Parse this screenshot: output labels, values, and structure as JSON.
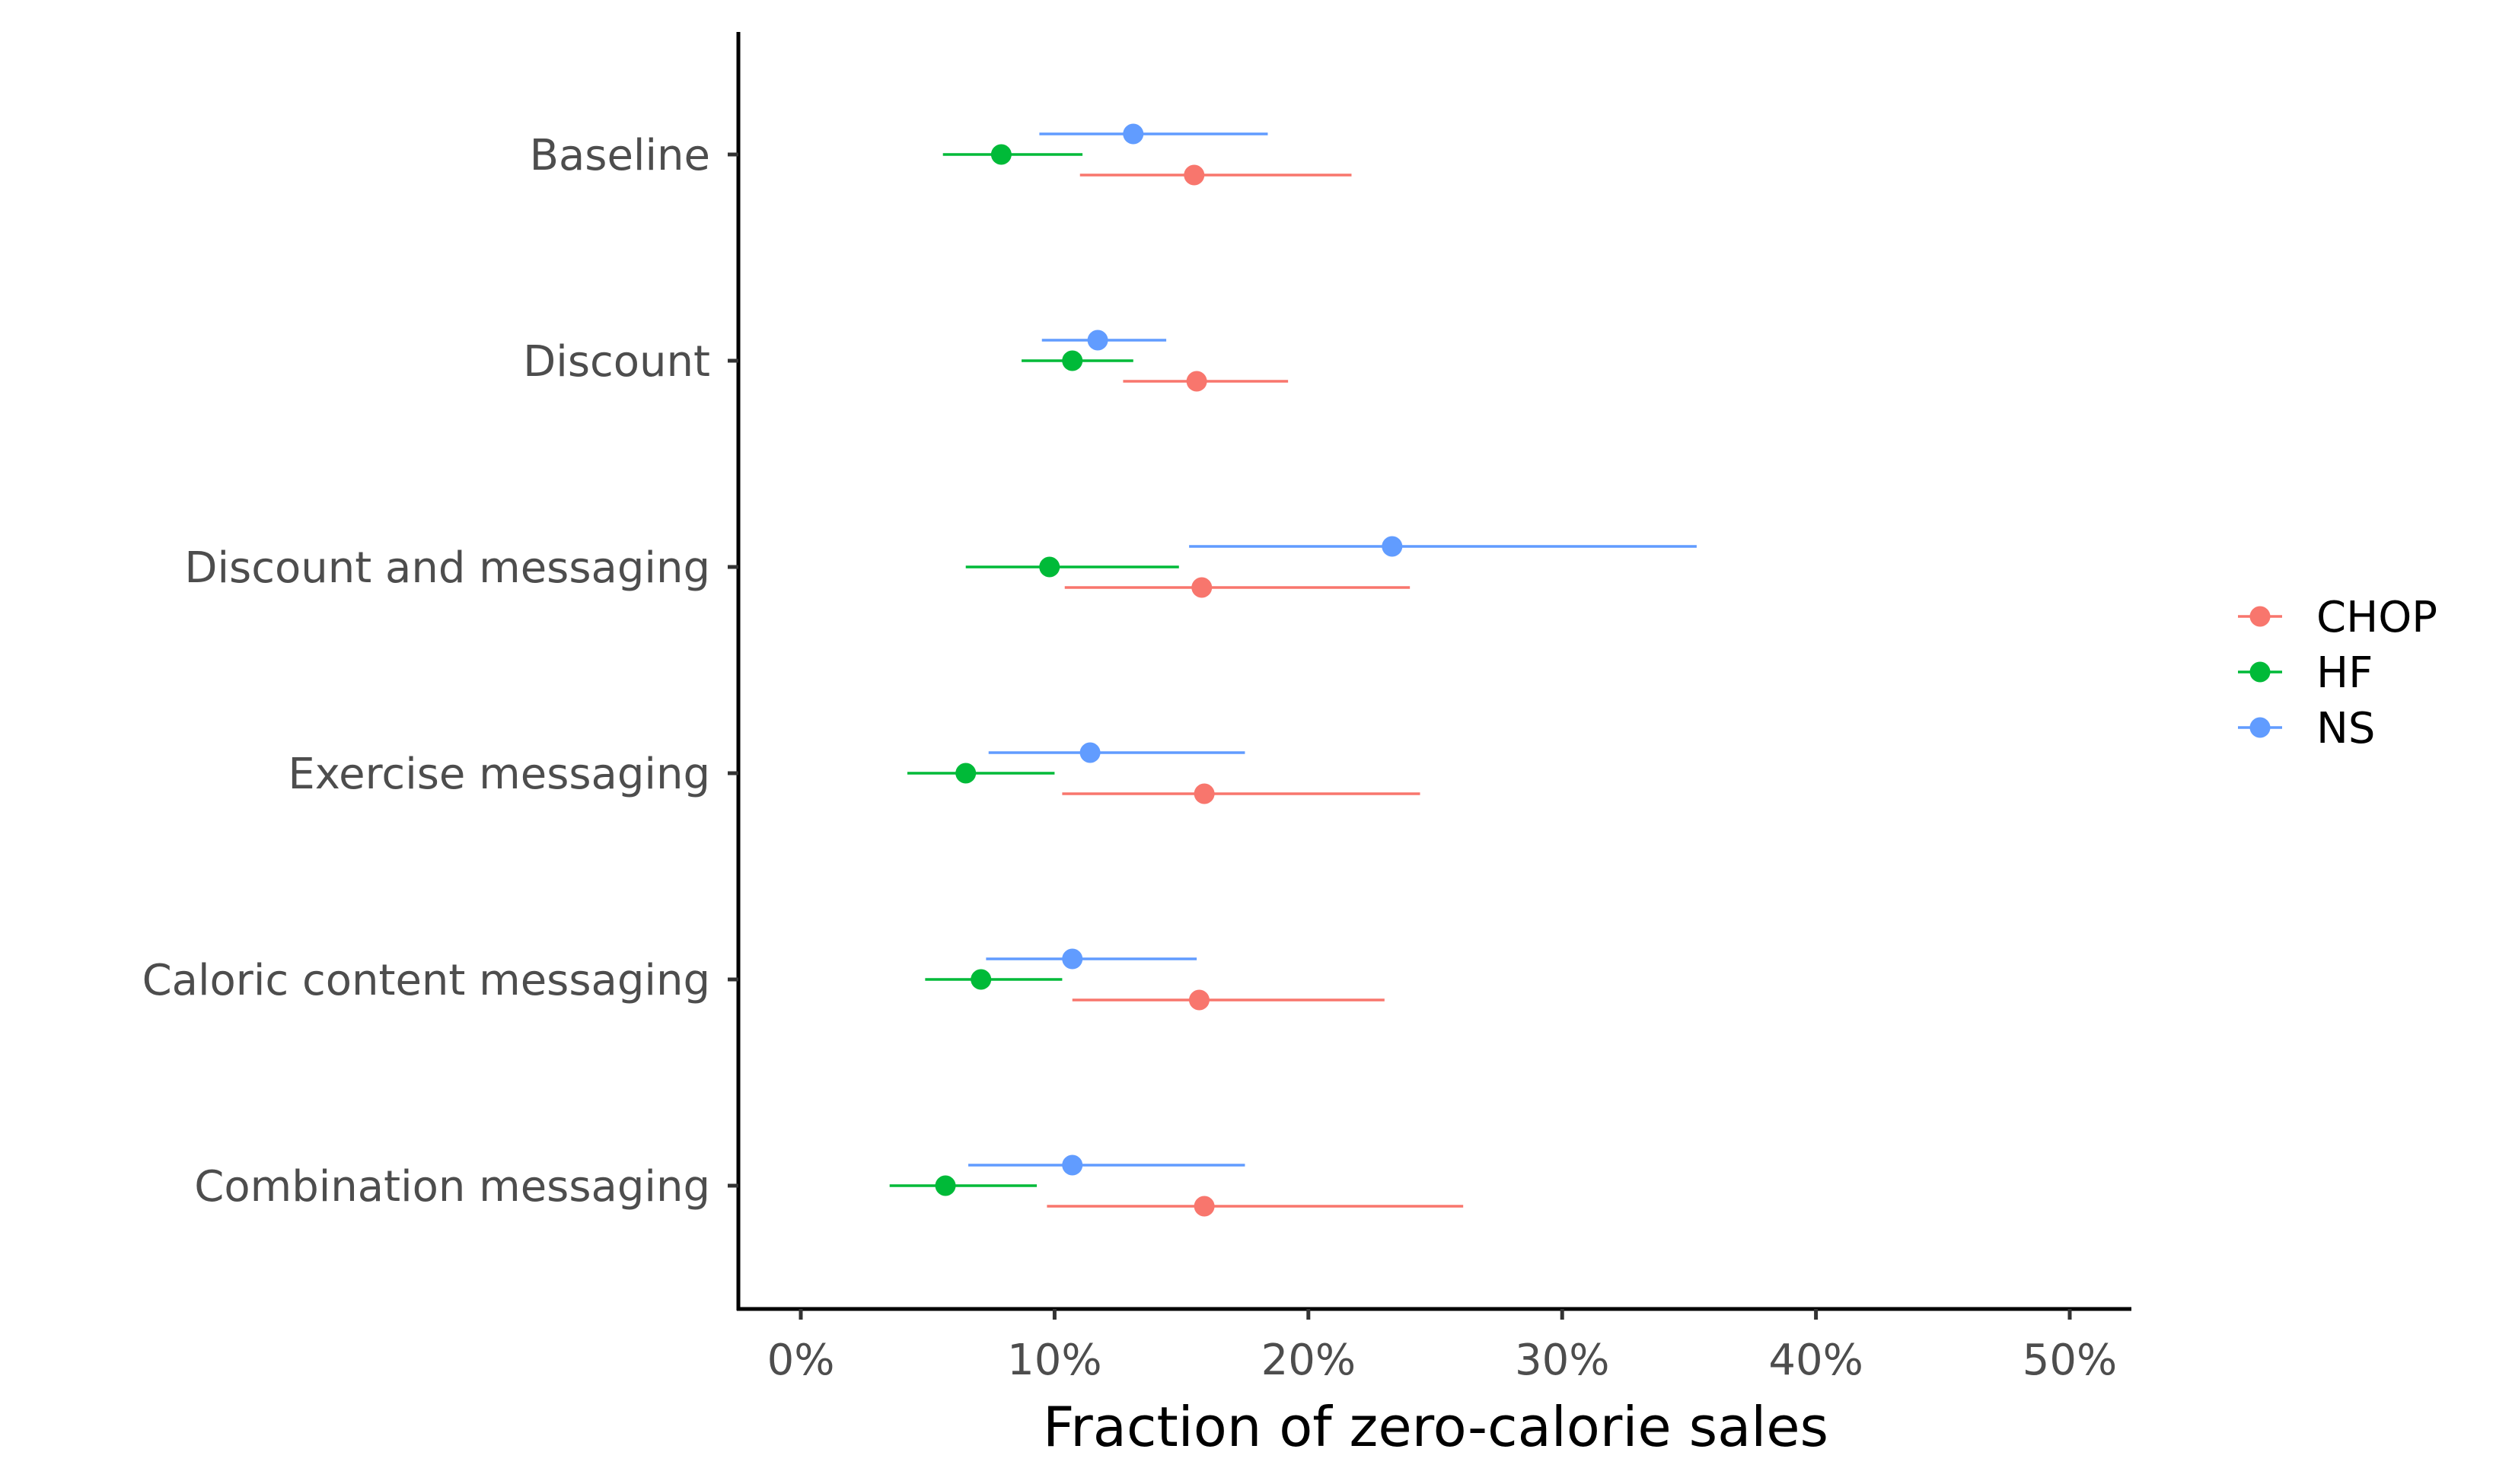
{
  "chart_data": {
    "type": "dot-and-whisker",
    "title": "",
    "xlabel": "Fraction of zero-calorie sales",
    "ylabel": "",
    "xlim": [
      -0.025,
      0.525
    ],
    "x_ticks": [
      0,
      0.1,
      0.2,
      0.3,
      0.4,
      0.5
    ],
    "x_tick_labels": [
      "0%",
      "10%",
      "20%",
      "30%",
      "40%",
      "50%"
    ],
    "categories": [
      "Baseline",
      "Discount",
      "Discount and messaging",
      "Exercise messaging",
      "Caloric content messaging",
      "Combination messaging"
    ],
    "grid": false,
    "legend_position": "right",
    "series": [
      {
        "name": "CHOP",
        "color": "#F8766D",
        "points": [
          {
            "value": 0.155,
            "low": 0.11,
            "high": 0.217
          },
          {
            "value": 0.156,
            "low": 0.127,
            "high": 0.192
          },
          {
            "value": 0.158,
            "low": 0.104,
            "high": 0.24
          },
          {
            "value": 0.159,
            "low": 0.103,
            "high": 0.244
          },
          {
            "value": 0.157,
            "low": 0.107,
            "high": 0.23
          },
          {
            "value": 0.159,
            "low": 0.097,
            "high": 0.261
          }
        ]
      },
      {
        "name": "HF",
        "color": "#00BA38",
        "points": [
          {
            "value": 0.079,
            "low": 0.056,
            "high": 0.111
          },
          {
            "value": 0.107,
            "low": 0.087,
            "high": 0.131
          },
          {
            "value": 0.098,
            "low": 0.065,
            "high": 0.149
          },
          {
            "value": 0.065,
            "low": 0.042,
            "high": 0.1
          },
          {
            "value": 0.071,
            "low": 0.049,
            "high": 0.103
          },
          {
            "value": 0.057,
            "low": 0.035,
            "high": 0.093
          }
        ]
      },
      {
        "name": "NS",
        "color": "#619CFF",
        "points": [
          {
            "value": 0.131,
            "low": 0.094,
            "high": 0.184
          },
          {
            "value": 0.117,
            "low": 0.095,
            "high": 0.144
          },
          {
            "value": 0.233,
            "low": 0.153,
            "high": 0.353
          },
          {
            "value": 0.114,
            "low": 0.074,
            "high": 0.175
          },
          {
            "value": 0.107,
            "low": 0.073,
            "high": 0.156
          },
          {
            "value": 0.107,
            "low": 0.066,
            "high": 0.175
          }
        ]
      }
    ]
  }
}
